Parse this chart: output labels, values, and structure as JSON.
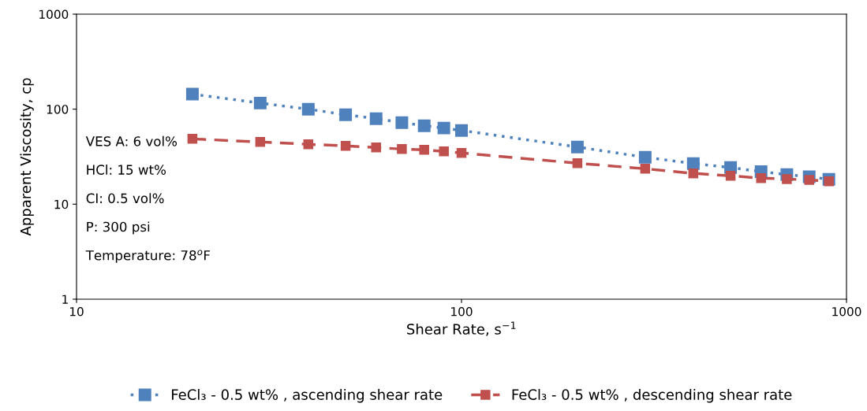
{
  "chart_data": {
    "type": "line",
    "xlabel": "Shear Rate, s$^{−1}$",
    "ylabel": "Apparent Viscosity, cp",
    "x": [
      20,
      30,
      40,
      50,
      60,
      70,
      80,
      90,
      100,
      200,
      300,
      400,
      500,
      600,
      700,
      800,
      900
    ],
    "series": [
      {
        "name": "FeCl₃ - 0.5 wt% , ascending shear rate",
        "color": "#4f81bd",
        "line_style": "dotted",
        "marker": "square",
        "values": [
          144,
          116,
          100,
          87.5,
          79.5,
          72.3,
          67,
          63.3,
          59.7,
          40,
          31.2,
          26.8,
          24.3,
          22,
          20.5,
          19.4,
          18.3
        ]
      },
      {
        "name": "FeCl₃ - 0.5 wt% , descending shear rate",
        "color": "#c0504d",
        "line_style": "dashed",
        "marker": "square",
        "values": [
          48.7,
          45.2,
          42.7,
          41.1,
          39.5,
          38,
          37.3,
          35.9,
          34.6,
          27,
          23.6,
          21.1,
          19.9,
          18.8,
          18.4,
          18.0,
          17.4
        ]
      }
    ],
    "log": "xy",
    "xlim": [
      10,
      1000
    ],
    "ylim": [
      1,
      1000
    ],
    "xticks": [
      10,
      100,
      1000
    ],
    "yticks": [
      1,
      10,
      100,
      1000
    ],
    "grid": false,
    "legend": "bottom",
    "annotations": [
      "VES A: 6 vol%",
      "HCl: 15 wt%",
      "CI: 0.5 vol%",
      "P: 300 psi",
      "Temperature: 78$^{o}$F"
    ]
  }
}
